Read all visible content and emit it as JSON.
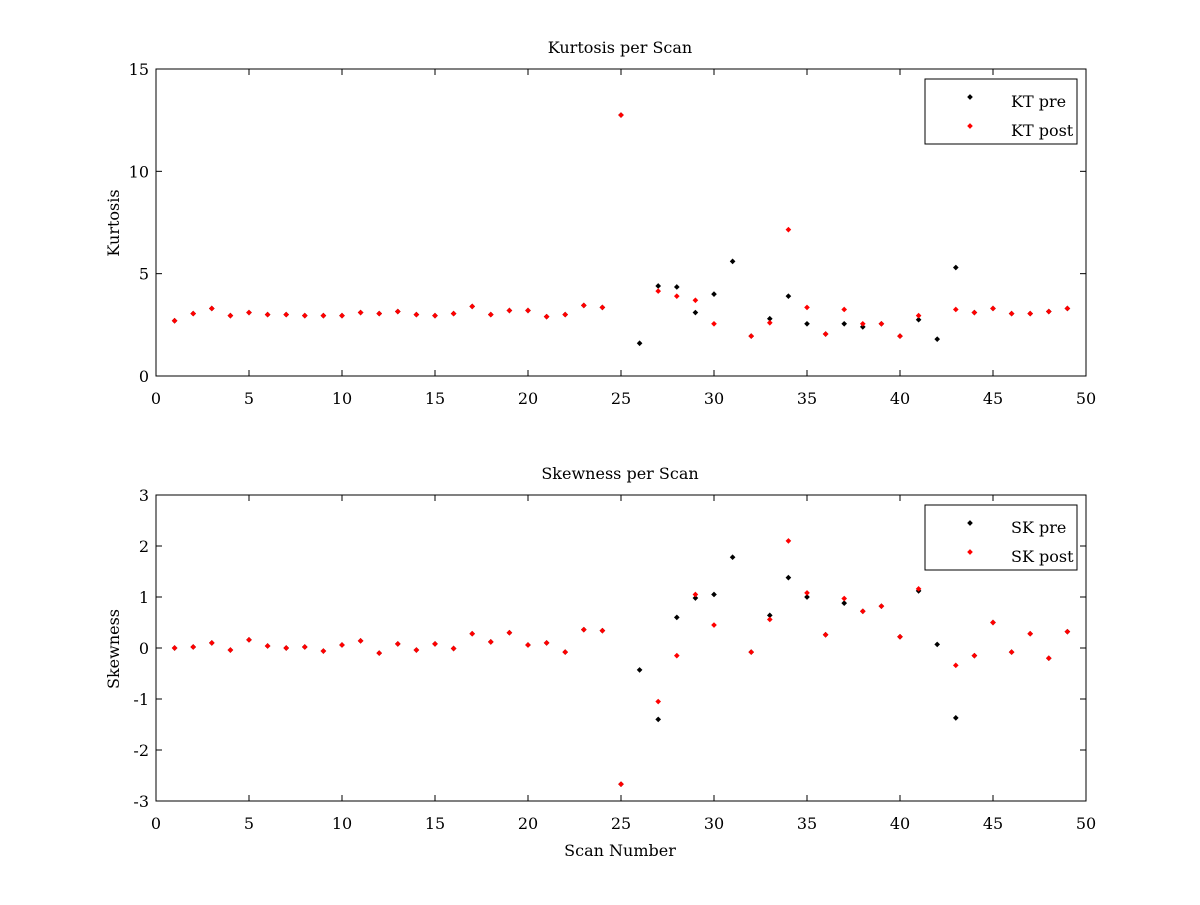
{
  "colors": {
    "pre": "#000000",
    "post": "#ff0000",
    "axes": "#000000",
    "background": "#ffffff"
  },
  "chart_data": [
    {
      "type": "scatter",
      "title": "Kurtosis per Scan",
      "xlabel": "",
      "ylabel": "Kurtosis",
      "xlim": [
        0,
        50
      ],
      "ylim": [
        0,
        15
      ],
      "xticks": [
        0,
        5,
        10,
        15,
        20,
        25,
        30,
        35,
        40,
        45,
        50
      ],
      "yticks": [
        0,
        5,
        10,
        15
      ],
      "grid": false,
      "legend_position": "top-right",
      "series": [
        {
          "name": "KT pre",
          "color": "#000000",
          "points": [
            [
              1,
              2.7
            ],
            [
              2,
              3.05
            ],
            [
              3,
              3.3
            ],
            [
              4,
              2.95
            ],
            [
              5,
              3.1
            ],
            [
              6,
              3.0
            ],
            [
              7,
              3.0
            ],
            [
              8,
              2.95
            ],
            [
              9,
              2.95
            ],
            [
              10,
              2.95
            ],
            [
              11,
              3.1
            ],
            [
              12,
              3.05
            ],
            [
              13,
              3.15
            ],
            [
              14,
              3.0
            ],
            [
              15,
              2.95
            ],
            [
              16,
              3.05
            ],
            [
              17,
              3.4
            ],
            [
              18,
              3.0
            ],
            [
              19,
              3.2
            ],
            [
              20,
              3.2
            ],
            [
              21,
              2.9
            ],
            [
              22,
              3.0
            ],
            [
              23,
              3.45
            ],
            [
              24,
              3.35
            ],
            [
              25,
              12.75
            ],
            [
              26,
              1.6
            ],
            [
              27,
              4.4
            ],
            [
              28,
              4.35
            ],
            [
              29,
              3.1
            ],
            [
              30,
              4.0
            ],
            [
              31,
              5.6
            ],
            [
              32,
              1.95
            ],
            [
              33,
              2.8
            ],
            [
              34,
              3.9
            ],
            [
              35,
              2.55
            ],
            [
              36,
              2.05
            ],
            [
              37,
              2.55
            ],
            [
              38,
              2.4
            ],
            [
              39,
              2.55
            ],
            [
              40,
              1.95
            ],
            [
              41,
              2.75
            ],
            [
              42,
              1.8
            ],
            [
              43,
              5.3
            ],
            [
              44,
              3.1
            ],
            [
              45,
              3.3
            ],
            [
              46,
              3.05
            ],
            [
              47,
              3.05
            ],
            [
              48,
              3.15
            ],
            [
              49,
              3.3
            ]
          ]
        },
        {
          "name": "KT post",
          "color": "#ff0000",
          "points": [
            [
              1,
              2.7
            ],
            [
              2,
              3.05
            ],
            [
              3,
              3.3
            ],
            [
              4,
              2.95
            ],
            [
              5,
              3.1
            ],
            [
              6,
              3.0
            ],
            [
              7,
              3.0
            ],
            [
              8,
              2.95
            ],
            [
              9,
              2.95
            ],
            [
              10,
              2.95
            ],
            [
              11,
              3.1
            ],
            [
              12,
              3.05
            ],
            [
              13,
              3.15
            ],
            [
              14,
              3.0
            ],
            [
              15,
              2.95
            ],
            [
              16,
              3.05
            ],
            [
              17,
              3.4
            ],
            [
              18,
              3.0
            ],
            [
              19,
              3.2
            ],
            [
              20,
              3.2
            ],
            [
              21,
              2.9
            ],
            [
              22,
              3.0
            ],
            [
              23,
              3.45
            ],
            [
              24,
              3.35
            ],
            [
              25,
              12.75
            ],
            [
              27,
              4.15
            ],
            [
              28,
              3.9
            ],
            [
              29,
              3.7
            ],
            [
              30,
              2.55
            ],
            [
              32,
              1.95
            ],
            [
              33,
              2.6
            ],
            [
              34,
              7.15
            ],
            [
              35,
              3.35
            ],
            [
              36,
              2.05
            ],
            [
              37,
              3.25
            ],
            [
              38,
              2.55
            ],
            [
              39,
              2.55
            ],
            [
              40,
              1.95
            ],
            [
              41,
              2.95
            ],
            [
              43,
              3.25
            ],
            [
              44,
              3.1
            ],
            [
              45,
              3.3
            ],
            [
              46,
              3.05
            ],
            [
              47,
              3.05
            ],
            [
              48,
              3.15
            ],
            [
              49,
              3.3
            ]
          ]
        }
      ]
    },
    {
      "type": "scatter",
      "title": "Skewness per Scan",
      "xlabel": "Scan Number",
      "ylabel": "Skewness",
      "xlim": [
        0,
        50
      ],
      "ylim": [
        -3,
        3
      ],
      "xticks": [
        0,
        5,
        10,
        15,
        20,
        25,
        30,
        35,
        40,
        45,
        50
      ],
      "yticks": [
        -3,
        -2,
        -1,
        0,
        1,
        2,
        3
      ],
      "grid": false,
      "legend_position": "top-right",
      "series": [
        {
          "name": "SK pre",
          "color": "#000000",
          "points": [
            [
              1,
              0.0
            ],
            [
              2,
              0.02
            ],
            [
              3,
              0.1
            ],
            [
              4,
              -0.04
            ],
            [
              5,
              0.16
            ],
            [
              6,
              0.04
            ],
            [
              7,
              0.0
            ],
            [
              8,
              0.02
            ],
            [
              9,
              -0.06
            ],
            [
              10,
              0.06
            ],
            [
              11,
              0.14
            ],
            [
              12,
              -0.1
            ],
            [
              13,
              0.08
            ],
            [
              14,
              -0.04
            ],
            [
              15,
              0.08
            ],
            [
              16,
              -0.01
            ],
            [
              17,
              0.28
            ],
            [
              18,
              0.12
            ],
            [
              19,
              0.3
            ],
            [
              20,
              0.06
            ],
            [
              21,
              0.1
            ],
            [
              22,
              -0.08
            ],
            [
              23,
              0.36
            ],
            [
              24,
              0.34
            ],
            [
              25,
              -2.67
            ],
            [
              26,
              -0.43
            ],
            [
              27,
              -1.4
            ],
            [
              28,
              0.6
            ],
            [
              29,
              0.98
            ],
            [
              30,
              1.05
            ],
            [
              31,
              1.78
            ],
            [
              32,
              -0.08
            ],
            [
              33,
              0.64
            ],
            [
              34,
              1.38
            ],
            [
              35,
              1.0
            ],
            [
              36,
              0.26
            ],
            [
              37,
              0.88
            ],
            [
              38,
              0.72
            ],
            [
              39,
              0.82
            ],
            [
              40,
              0.22
            ],
            [
              41,
              1.12
            ],
            [
              42,
              0.07
            ],
            [
              43,
              -1.37
            ],
            [
              44,
              -0.15
            ],
            [
              45,
              0.5
            ],
            [
              46,
              -0.08
            ],
            [
              47,
              0.28
            ],
            [
              48,
              -0.2
            ],
            [
              49,
              0.32
            ]
          ]
        },
        {
          "name": "SK post",
          "color": "#ff0000",
          "points": [
            [
              1,
              0.0
            ],
            [
              2,
              0.02
            ],
            [
              3,
              0.1
            ],
            [
              4,
              -0.04
            ],
            [
              5,
              0.16
            ],
            [
              6,
              0.04
            ],
            [
              7,
              0.0
            ],
            [
              8,
              0.02
            ],
            [
              9,
              -0.06
            ],
            [
              10,
              0.06
            ],
            [
              11,
              0.14
            ],
            [
              12,
              -0.1
            ],
            [
              13,
              0.08
            ],
            [
              14,
              -0.04
            ],
            [
              15,
              0.08
            ],
            [
              16,
              -0.01
            ],
            [
              17,
              0.28
            ],
            [
              18,
              0.12
            ],
            [
              19,
              0.3
            ],
            [
              20,
              0.06
            ],
            [
              21,
              0.1
            ],
            [
              22,
              -0.08
            ],
            [
              23,
              0.36
            ],
            [
              24,
              0.34
            ],
            [
              25,
              -2.67
            ],
            [
              27,
              -1.05
            ],
            [
              28,
              -0.15
            ],
            [
              29,
              1.05
            ],
            [
              30,
              0.45
            ],
            [
              32,
              -0.08
            ],
            [
              33,
              0.56
            ],
            [
              34,
              2.1
            ],
            [
              35,
              1.08
            ],
            [
              36,
              0.26
            ],
            [
              37,
              0.97
            ],
            [
              38,
              0.72
            ],
            [
              39,
              0.82
            ],
            [
              40,
              0.22
            ],
            [
              41,
              1.16
            ],
            [
              43,
              -0.34
            ],
            [
              44,
              -0.15
            ],
            [
              45,
              0.5
            ],
            [
              46,
              -0.08
            ],
            [
              47,
              0.28
            ],
            [
              48,
              -0.2
            ],
            [
              49,
              0.32
            ]
          ]
        }
      ]
    }
  ]
}
